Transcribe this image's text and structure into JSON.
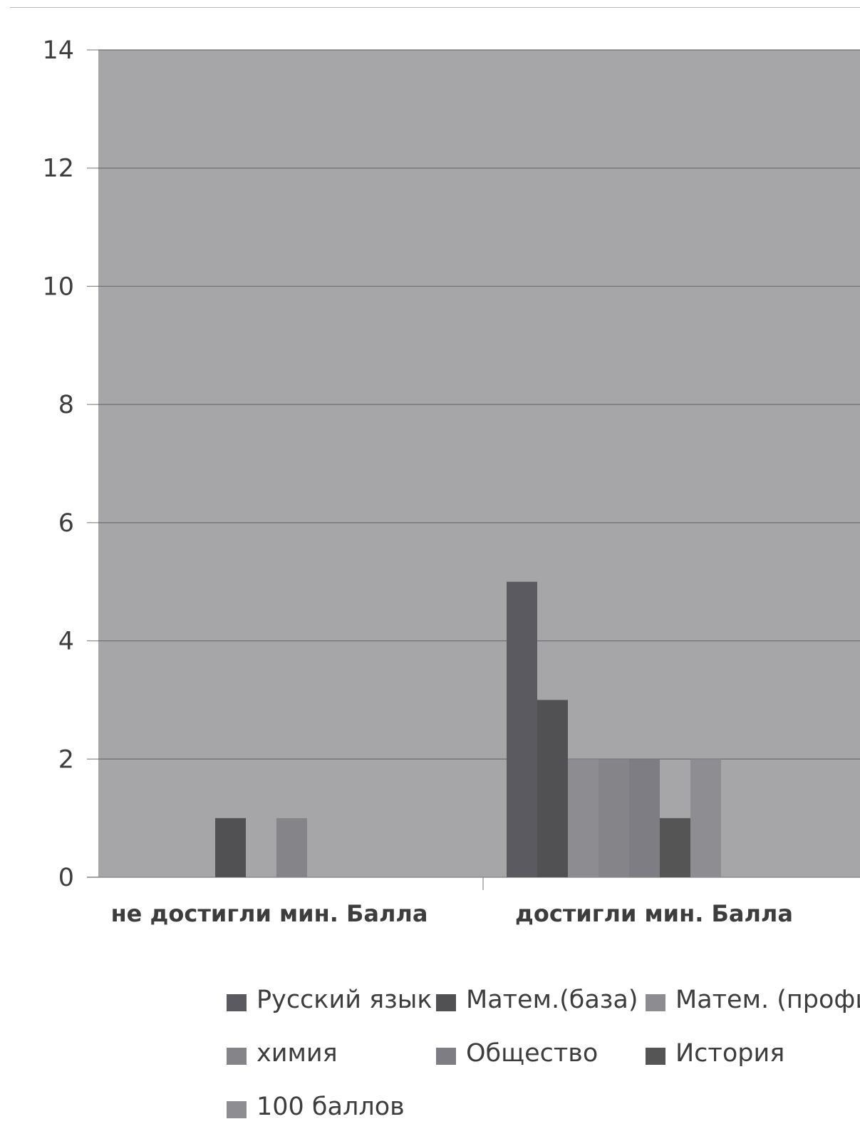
{
  "chart_data": {
    "type": "bar",
    "categories": [
      "не достигли мин. Балла",
      "достигли мин. Балла"
    ],
    "series": [
      {
        "name": "Русский язык",
        "values": [
          0,
          5
        ],
        "color": "#5a5a60"
      },
      {
        "name": "Матем.(база)",
        "values": [
          1,
          3
        ],
        "color": "#515154"
      },
      {
        "name": "Матем. (профиль)",
        "values": [
          0,
          2
        ],
        "color": "#8d8d91"
      },
      {
        "name": "химия",
        "values": [
          1,
          2
        ],
        "color": "#858589"
      },
      {
        "name": "Общество",
        "values": [
          0,
          2
        ],
        "color": "#7d7d83"
      },
      {
        "name": "История",
        "values": [
          0,
          1
        ],
        "color": "#555556"
      },
      {
        "name": "100 баллов",
        "values": [
          0,
          2
        ],
        "color": "#8e8e92"
      }
    ],
    "extra_bars_note": [],
    "yticks": [
      "0",
      "2",
      "4",
      "6",
      "8",
      "10",
      "12",
      "14"
    ],
    "ylim": [
      0,
      14
    ],
    "grid": true,
    "legend": "bottom",
    "plot_background": "#a6a6a8",
    "gridline_color": "#6e6e72",
    "axis_text_color": "#3d3d3d"
  }
}
